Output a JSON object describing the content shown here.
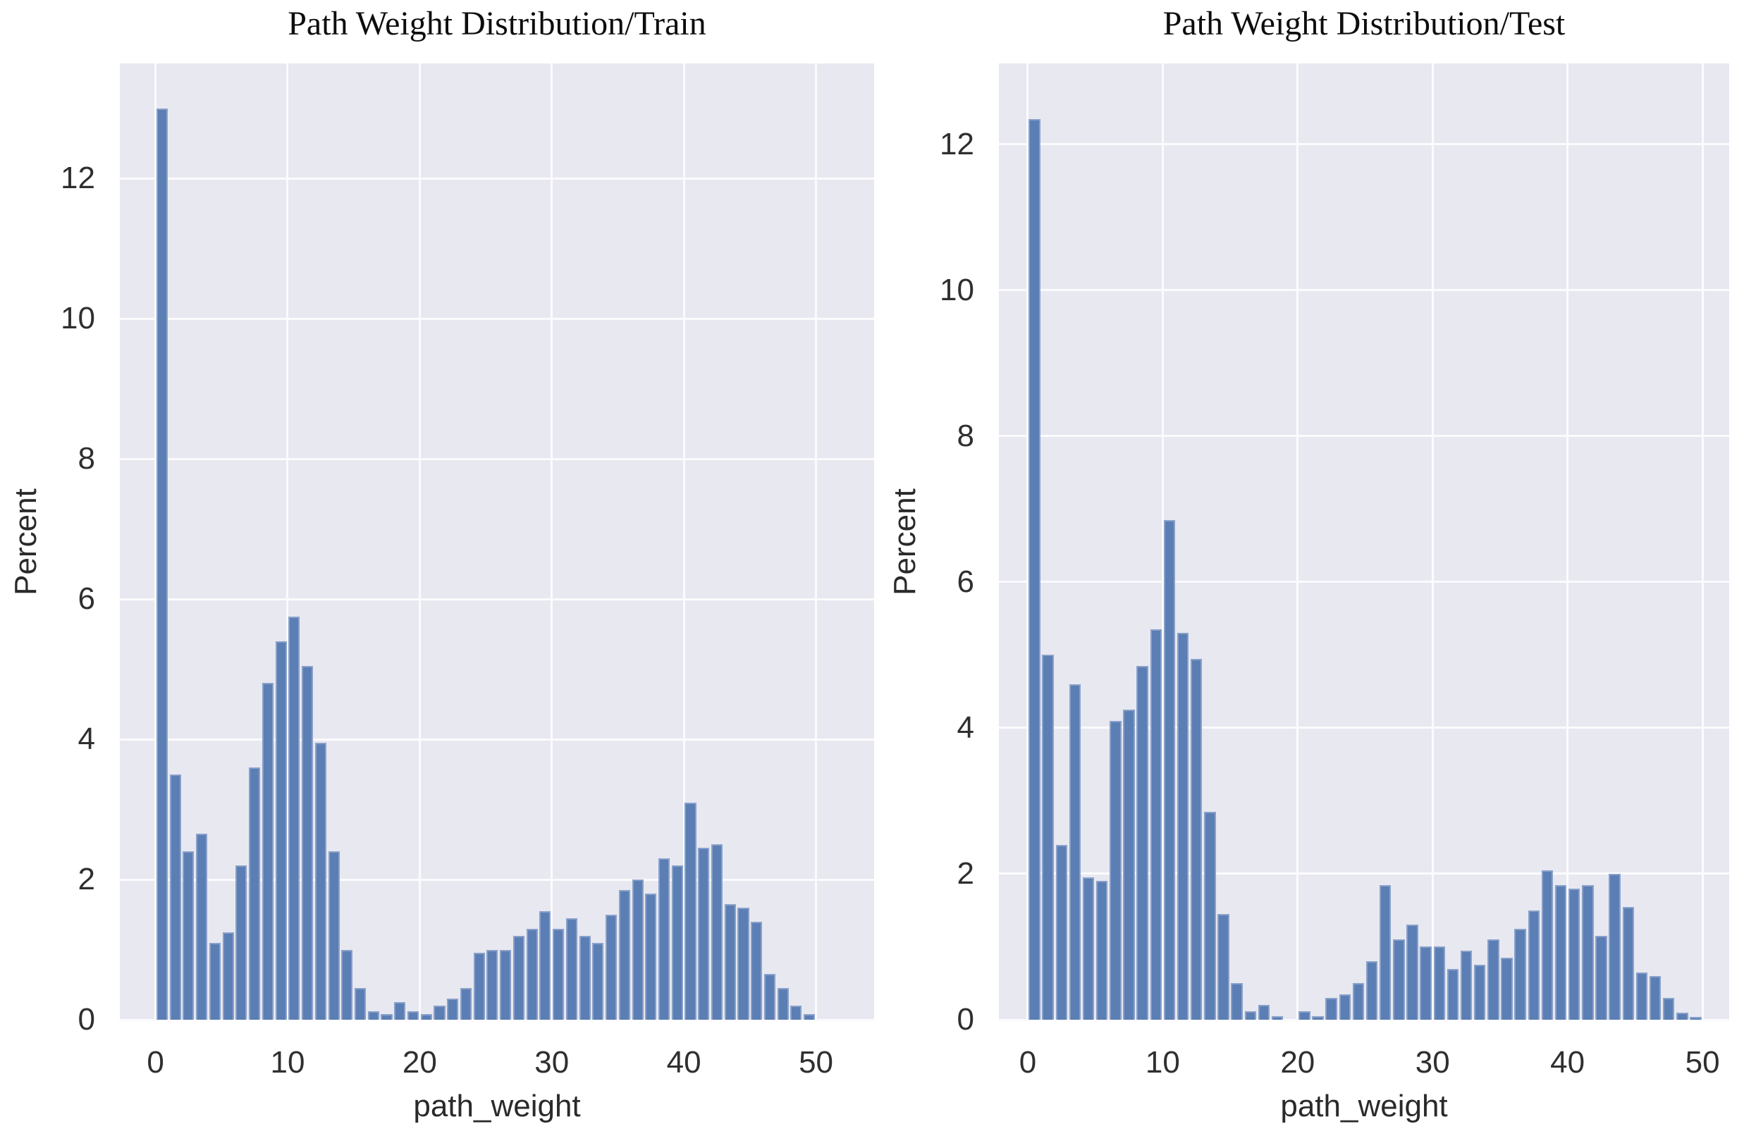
{
  "style": {
    "figure_background": "#ffffff",
    "plot_background": "#e8e8f1",
    "grid_color": "#fbfbfd",
    "bar_fill": "#5b7eb4",
    "bar_edge": "#89a1c9",
    "tick_text_color": "#2f2f2f",
    "title_color": "#0d0d0d"
  },
  "chart_data": [
    {
      "type": "bar",
      "title": "Path Weight Distribution/Train",
      "xlabel": "path_weight",
      "ylabel": "Percent",
      "bin_width": 1,
      "bin_start_x": [
        0,
        1,
        2,
        3,
        4,
        5,
        6,
        7,
        8,
        9,
        10,
        11,
        12,
        13,
        14,
        15,
        16,
        17,
        18,
        19,
        20,
        21,
        22,
        23,
        24,
        25,
        26,
        27,
        28,
        29,
        30,
        31,
        32,
        33,
        34,
        35,
        36,
        37,
        38,
        39,
        40,
        41,
        42,
        43,
        44,
        45,
        46,
        47,
        48,
        49
      ],
      "values": [
        13.0,
        3.5,
        2.4,
        2.65,
        1.1,
        1.25,
        2.2,
        3.6,
        4.8,
        5.4,
        5.75,
        5.05,
        3.95,
        2.4,
        1.0,
        0.45,
        0.12,
        0.08,
        0.25,
        0.12,
        0.08,
        0.2,
        0.3,
        0.45,
        0.95,
        1.0,
        1.0,
        1.2,
        1.3,
        1.55,
        1.3,
        1.45,
        1.2,
        1.1,
        1.5,
        1.85,
        2.0,
        1.8,
        2.3,
        2.2,
        3.1,
        2.45,
        2.5,
        1.65,
        1.6,
        1.4,
        0.65,
        0.45,
        0.2,
        0.08
      ],
      "xticks": [
        0,
        10,
        20,
        30,
        40,
        50
      ],
      "yticks": [
        0,
        2,
        4,
        6,
        8,
        10,
        12
      ],
      "xlim": [
        -2.7,
        54.4
      ],
      "ylim": [
        0,
        13.64
      ],
      "grid": true,
      "legend": null
    },
    {
      "type": "bar",
      "title": "Path Weight Distribution/Test",
      "xlabel": "path_weight",
      "ylabel": "Percent",
      "bin_width": 1,
      "bin_start_x": [
        0,
        1,
        2,
        3,
        4,
        5,
        6,
        7,
        8,
        9,
        10,
        11,
        12,
        13,
        14,
        15,
        16,
        17,
        18,
        19,
        20,
        21,
        22,
        23,
        24,
        25,
        26,
        27,
        28,
        29,
        30,
        31,
        32,
        33,
        34,
        35,
        36,
        37,
        38,
        39,
        40,
        41,
        42,
        43,
        44,
        45,
        46,
        47,
        48,
        49
      ],
      "values": [
        12.35,
        5.0,
        2.4,
        4.6,
        1.95,
        1.9,
        4.1,
        4.25,
        4.85,
        5.35,
        6.85,
        5.3,
        4.95,
        2.85,
        1.45,
        0.5,
        0.12,
        0.2,
        0.05,
        0.0,
        0.12,
        0.05,
        0.3,
        0.35,
        0.5,
        0.8,
        1.85,
        1.1,
        1.3,
        1.0,
        1.0,
        0.7,
        0.95,
        0.75,
        1.1,
        0.85,
        1.25,
        1.5,
        2.05,
        1.85,
        1.8,
        1.85,
        1.15,
        2.0,
        1.55,
        0.65,
        0.6,
        0.3,
        0.1,
        0.04
      ],
      "xticks": [
        0,
        10,
        20,
        30,
        40,
        50
      ],
      "yticks": [
        0,
        2,
        4,
        6,
        8,
        10,
        12
      ],
      "xlim": [
        -2.14,
        51.98
      ],
      "ylim": [
        0,
        13.11
      ],
      "grid": true,
      "legend": null
    }
  ]
}
